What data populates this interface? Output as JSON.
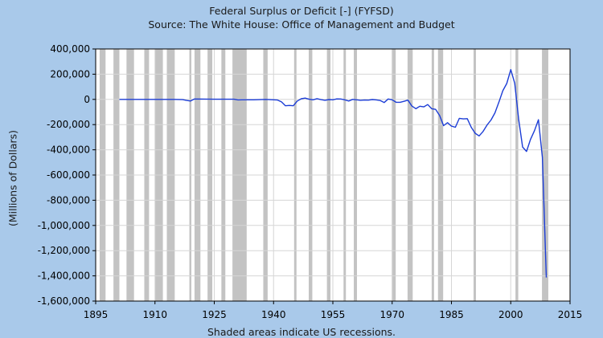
{
  "chart_data": {
    "type": "line",
    "title": "Federal Surplus or Deficit [-] (FYFSD)",
    "subtitle": "Source: The White House: Office of Management and Budget",
    "ylabel": "(Millions of Dollars)",
    "xlabel": "",
    "footnote": "Shaded areas indicate US recessions.",
    "xlim": [
      1895,
      2015
    ],
    "ylim": [
      -1600000,
      400000
    ],
    "x_ticks": [
      1895,
      1910,
      1925,
      1940,
      1955,
      1970,
      1985,
      2000,
      2015
    ],
    "x_tick_labels": [
      "1895",
      "1910",
      "1925",
      "1940",
      "1955",
      "1970",
      "1985",
      "2000",
      "2015"
    ],
    "y_ticks": [
      400000,
      200000,
      0,
      -200000,
      -400000,
      -600000,
      -800000,
      -1000000,
      -1200000,
      -1400000,
      -1600000
    ],
    "y_tick_labels": [
      "400,000",
      "200,000",
      "0",
      "-200,000",
      "-400,000",
      "-600,000",
      "-800,000",
      "-1,000,000",
      "-1,200,000",
      "-1,400,000",
      "-1,600,000"
    ],
    "grid": true,
    "recessions": [
      [
        1896.0,
        1897.5
      ],
      [
        1899.5,
        1901.0
      ],
      [
        1902.8,
        1904.7
      ],
      [
        1907.3,
        1908.5
      ],
      [
        1910.0,
        1912.0
      ],
      [
        1913.0,
        1915.0
      ],
      [
        1918.7,
        1919.2
      ],
      [
        1920.0,
        1921.5
      ],
      [
        1923.3,
        1924.5
      ],
      [
        1926.8,
        1927.8
      ],
      [
        1929.6,
        1933.2
      ],
      [
        1937.4,
        1938.5
      ],
      [
        1945.2,
        1945.8
      ],
      [
        1948.9,
        1949.8
      ],
      [
        1953.5,
        1954.4
      ],
      [
        1957.7,
        1958.3
      ],
      [
        1960.3,
        1961.1
      ],
      [
        1969.9,
        1970.9
      ],
      [
        1973.9,
        1975.2
      ],
      [
        1980.0,
        1980.6
      ],
      [
        1981.6,
        1982.9
      ],
      [
        1990.6,
        1991.2
      ],
      [
        2001.2,
        2001.9
      ],
      [
        2007.9,
        2009.5
      ]
    ],
    "series": [
      {
        "name": "",
        "color": "#1c3dd6",
        "x": [
          1901,
          1905,
          1910,
          1915,
          1917,
          1918,
          1919,
          1920,
          1925,
          1930,
          1931,
          1932,
          1935,
          1938,
          1940,
          1941,
          1942,
          1943,
          1944,
          1945,
          1946,
          1947,
          1948,
          1949,
          1950,
          1951,
          1952,
          1953,
          1954,
          1955,
          1956,
          1957,
          1958,
          1959,
          1960,
          1961,
          1962,
          1963,
          1964,
          1965,
          1966,
          1967,
          1968,
          1969,
          1970,
          1971,
          1972,
          1973,
          1974,
          1975,
          1976,
          1977,
          1978,
          1979,
          1980,
          1981,
          1982,
          1983,
          1984,
          1985,
          1986,
          1987,
          1988,
          1989,
          1990,
          1991,
          1992,
          1993,
          1994,
          1995,
          1996,
          1997,
          1998,
          1999,
          2000,
          2001,
          2002,
          2003,
          2004,
          2005,
          2006,
          2007,
          2008,
          2009
        ],
        "y": [
          0,
          0,
          0,
          0,
          -2000,
          -8000,
          -13000,
          3000,
          1000,
          1000,
          -4000,
          -3000,
          -3000,
          0,
          -3000,
          -5000,
          -20000,
          -50000,
          -48000,
          -50000,
          -13000,
          5000,
          10000,
          1000,
          -3000,
          6000,
          -2000,
          -7000,
          -1000,
          -3000,
          4000,
          3000,
          -3000,
          -13000,
          0,
          -3000,
          -7000,
          -5000,
          -6000,
          -1000,
          -4000,
          -9000,
          -25000,
          3000,
          -3000,
          -23000,
          -23000,
          -15000,
          -6000,
          -53000,
          -74000,
          -54000,
          -59000,
          -41000,
          -74000,
          -79000,
          -128000,
          -208000,
          -185000,
          -212000,
          -221000,
          -150000,
          -155000,
          -153000,
          -221000,
          -269000,
          -290000,
          -255000,
          -203000,
          -164000,
          -107000,
          -22000,
          69000,
          126000,
          236000,
          128000,
          -158000,
          -378000,
          -413000,
          -318000,
          -248000,
          -161000,
          -459000,
          -1413000
        ]
      }
    ]
  }
}
